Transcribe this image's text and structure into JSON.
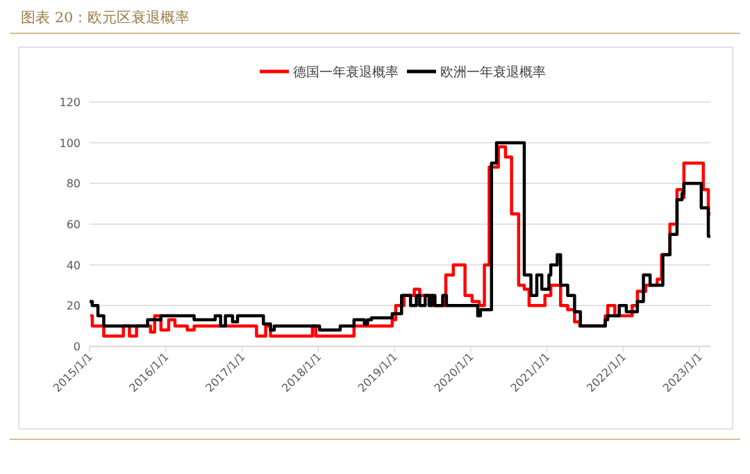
{
  "chart_data": {
    "type": "step",
    "title": "图表 20：欧元区衰退概率",
    "legend": "top",
    "grid": "y",
    "xlim": [
      "2015-01-01",
      "2023-02-23"
    ],
    "xticks": [
      {
        "value": "2015-01-01",
        "label": "2015/1/1"
      },
      {
        "value": "2016-01-01",
        "label": "2016/1/1"
      },
      {
        "value": "2017-01-01",
        "label": "2017/1/1"
      },
      {
        "value": "2018-01-01",
        "label": "2018/1/1"
      },
      {
        "value": "2019-01-01",
        "label": "2019/1/1"
      },
      {
        "value": "2020-01-01",
        "label": "2020/1/1"
      },
      {
        "value": "2021-01-01",
        "label": "2021/1/1"
      },
      {
        "value": "2022-01-01",
        "label": "2022/1/1"
      },
      {
        "value": "2023-01-01",
        "label": "2023/1/1"
      }
    ],
    "ylim": [
      0,
      120
    ],
    "yticks": [
      0,
      20,
      40,
      60,
      80,
      100,
      120
    ],
    "series": [
      {
        "name": "德国一年衰退概率",
        "color": "#ff0000",
        "x": [
          "2015-01-04",
          "2015-01-14",
          "2015-03-10",
          "2015-06-12",
          "2015-07-11",
          "2015-08-14",
          "2015-10-20",
          "2015-11-09",
          "2015-12-09",
          "2016-01-15",
          "2016-02-14",
          "2016-04-13",
          "2016-05-16",
          "2017-03-11",
          "2017-04-24",
          "2017-05-17",
          "2017-12-04",
          "2017-12-20",
          "2018-06-21",
          "2018-12-21",
          "2019-01-07",
          "2019-02-16",
          "2019-04-06",
          "2019-05-02",
          "2019-07-01",
          "2019-09-04",
          "2019-10-10",
          "2019-12-05",
          "2020-01-08",
          "2020-02-11",
          "2020-03-07",
          "2020-03-30",
          "2020-05-13",
          "2020-06-16",
          "2020-07-15",
          "2020-08-18",
          "2020-09-14",
          "2020-10-07",
          "2020-12-22",
          "2021-01-19",
          "2021-03-07",
          "2021-04-10",
          "2021-05-13",
          "2021-06-07",
          "2021-10-07",
          "2021-10-19",
          "2021-11-22",
          "2022-02-13",
          "2022-03-10",
          "2022-04-19",
          "2022-06-13",
          "2022-07-04",
          "2022-08-13",
          "2022-09-16",
          "2022-10-13",
          "2022-10-19",
          "2023-01-20",
          "2023-02-13",
          "2023-02-23"
        ],
        "values": [
          15,
          10,
          5,
          10,
          5,
          10,
          7,
          15,
          8,
          13,
          10,
          8,
          10,
          5,
          10,
          5,
          10,
          5,
          10,
          13,
          20,
          25,
          28,
          25,
          20,
          35,
          40,
          25,
          22,
          20,
          40,
          88,
          98,
          93,
          65,
          30,
          28,
          20,
          25,
          30,
          20,
          18,
          12,
          10,
          15,
          20,
          15,
          20,
          27,
          30,
          33,
          45,
          60,
          77,
          73,
          90,
          77,
          65,
          65
        ]
      },
      {
        "name": "欧洲一年衰退概率",
        "color": "#000000",
        "x": [
          "2015-01-01",
          "2015-01-14",
          "2015-02-10",
          "2015-03-10",
          "2015-10-06",
          "2015-12-09",
          "2016-05-16",
          "2016-08-25",
          "2016-09-20",
          "2016-10-13",
          "2016-11-16",
          "2016-12-10",
          "2017-04-13",
          "2017-05-17",
          "2017-06-04",
          "2018-01-07",
          "2018-04-16",
          "2018-06-21",
          "2018-08-10",
          "2018-08-25",
          "2018-09-13",
          "2018-12-21",
          "2019-02-04",
          "2019-03-19",
          "2019-04-16",
          "2019-05-02",
          "2019-05-28",
          "2019-06-16",
          "2019-06-28",
          "2019-07-14",
          "2019-08-20",
          "2019-09-07",
          "2020-02-04",
          "2020-02-17",
          "2020-04-10",
          "2020-05-04",
          "2020-09-14",
          "2020-10-16",
          "2020-11-13",
          "2020-12-07",
          "2021-01-10",
          "2021-01-19",
          "2021-02-19",
          "2021-03-07",
          "2021-04-10",
          "2021-05-13",
          "2021-06-10",
          "2021-10-07",
          "2021-10-19",
          "2021-12-13",
          "2022-01-16",
          "2022-03-10",
          "2022-04-08",
          "2022-05-10",
          "2022-07-10",
          "2022-08-13",
          "2022-09-16",
          "2022-10-10",
          "2022-10-19",
          "2023-01-10",
          "2023-02-13",
          "2023-02-23"
        ],
        "values": [
          22,
          20,
          15,
          10,
          13,
          15,
          13,
          15,
          10,
          15,
          12,
          15,
          11,
          8,
          10,
          8,
          10,
          13,
          11,
          13,
          14,
          16,
          25,
          20,
          25,
          20,
          25,
          20,
          25,
          20,
          25,
          20,
          15,
          18,
          90,
          100,
          35,
          25,
          35,
          28,
          35,
          40,
          45,
          30,
          25,
          17,
          10,
          13,
          15,
          20,
          17,
          22,
          35,
          30,
          45,
          55,
          72,
          75,
          80,
          68,
          54,
          54
        ]
      }
    ]
  }
}
